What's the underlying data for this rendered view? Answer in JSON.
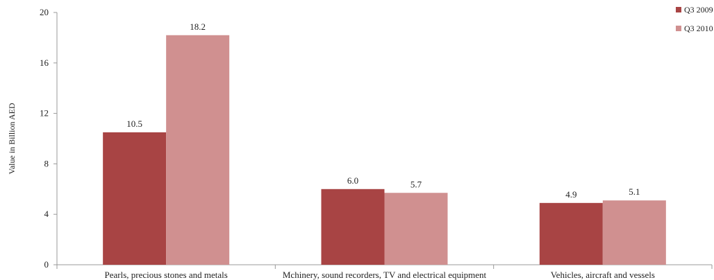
{
  "chart_data": {
    "type": "bar",
    "categories": [
      "Pearls, precious stones and metals",
      "Mchinery, sound recorders, TV and electrical equipment",
      "Vehicles, aircraft and vessels"
    ],
    "series": [
      {
        "name": "Q3 2009",
        "color": "#a84444",
        "values": [
          10.5,
          6.0,
          4.9
        ],
        "labels": [
          "10.5",
          "6.0",
          "4.9"
        ]
      },
      {
        "name": "Q3 2010",
        "color": "#d09090",
        "values": [
          18.2,
          5.7,
          5.1
        ],
        "labels": [
          "18.2",
          "5.7",
          "5.1"
        ]
      }
    ],
    "ylabel": "Value in Billion AED",
    "ylim": [
      0,
      20
    ],
    "yticks": [
      0,
      4,
      8,
      12,
      16,
      20
    ],
    "grid": false,
    "legend_position": "top-right"
  }
}
